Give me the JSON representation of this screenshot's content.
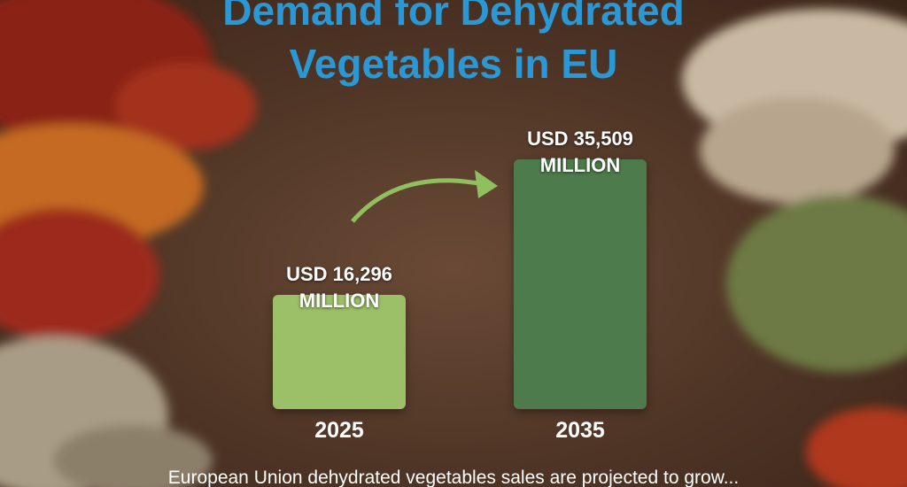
{
  "chart_data": {
    "type": "bar",
    "title": "Demand for Dehydrated Vegetables in EU",
    "categories": [
      "2025",
      "2035"
    ],
    "values": [
      16296,
      35509
    ],
    "value_labels": [
      "USD 16,296 MILLION",
      "USD 35,509 MILLION"
    ],
    "colors": [
      "#9cc067",
      "#4e7b4b"
    ],
    "caption": "European Union dehydrated vegetables sales are projected to grow..."
  }
}
